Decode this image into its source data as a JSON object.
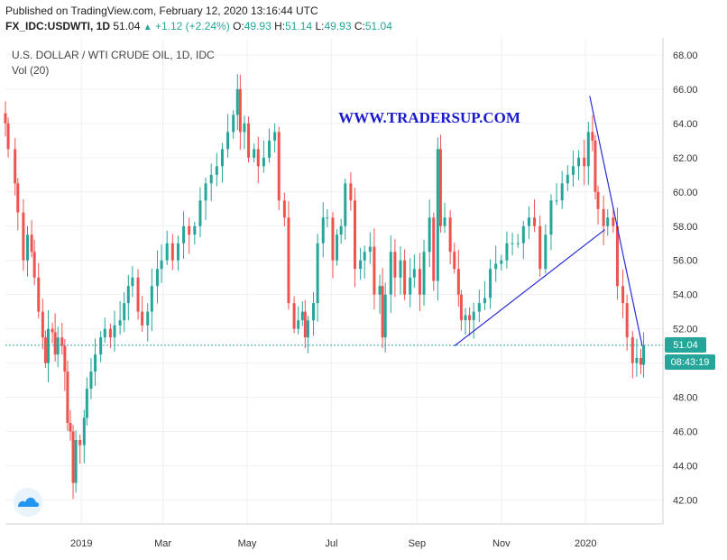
{
  "header": {
    "published": "Published on TradingView.com, February 12, 2020 13:16:44 UTC",
    "symbol": "FX_IDC:USDWTI, 1D",
    "last": "51.04",
    "change": "+1.12 (+2.24%)",
    "o_label": "O:",
    "o_val": "49.93",
    "h_label": "H:",
    "h_val": "51.14",
    "l_label": "L:",
    "l_val": "49.93",
    "c_label": "C:",
    "c_val": "51.04"
  },
  "pane": {
    "title": "U.S. DOLLAR / WTI CRUDE OIL, 1D, IDC",
    "volume": "Vol (20)",
    "watermark": "WWW.TRADERSUP.COM"
  },
  "colors": {
    "up": "#26a69a",
    "down": "#ef5350",
    "trendline": "#2b2bd6",
    "watermark": "#1a1acc",
    "price_line": "#26a69a"
  },
  "price_badge": {
    "value": "51.04",
    "countdown": "08:43:19"
  },
  "icons": {
    "tv_logo": "tradingview-cloud-icon"
  },
  "chart_data": {
    "type": "candlestick",
    "title": "U.S. DOLLAR / WTI CRUDE OIL, 1D, IDC",
    "ylim": [
      40.6,
      69.0
    ],
    "y_ticks": [
      "42.00",
      "44.00",
      "46.00",
      "48.00",
      "50.00",
      "52.00",
      "54.00",
      "56.00",
      "58.00",
      "60.00",
      "62.00",
      "64.00",
      "66.00",
      "68.00"
    ],
    "x_ticks": [
      {
        "label": "2019",
        "date": "2019-01-01"
      },
      {
        "label": "Mar",
        "date": "2019-03-01"
      },
      {
        "label": "May",
        "date": "2019-05-01"
      },
      {
        "label": "Jul",
        "date": "2019-07-01"
      },
      {
        "label": "Sep",
        "date": "2019-09-01"
      },
      {
        "label": "Nov",
        "date": "2019-11-01"
      },
      {
        "label": "2020",
        "date": "2020-01-01"
      }
    ],
    "x_range": [
      "2018-11-07",
      "2020-02-26"
    ],
    "grid": true,
    "last_price": 51.04,
    "closes": [
      {
        "date": "2018-11-07",
        "value": 64.0
      },
      {
        "date": "2018-11-09",
        "value": 62.5
      },
      {
        "date": "2018-11-14",
        "value": 60.5
      },
      {
        "date": "2018-11-16",
        "value": 58.8
      },
      {
        "date": "2018-11-20",
        "value": 56.0
      },
      {
        "date": "2018-11-23",
        "value": 57.5
      },
      {
        "date": "2018-11-26",
        "value": 56.5
      },
      {
        "date": "2018-11-28",
        "value": 55.0
      },
      {
        "date": "2018-12-01",
        "value": 53.0
      },
      {
        "date": "2018-12-04",
        "value": 51.5
      },
      {
        "date": "2018-12-06",
        "value": 50.0
      },
      {
        "date": "2018-12-08",
        "value": 52.0
      },
      {
        "date": "2018-12-11",
        "value": 51.8
      },
      {
        "date": "2018-12-13",
        "value": 50.5
      },
      {
        "date": "2018-12-15",
        "value": 51.5
      },
      {
        "date": "2018-12-18",
        "value": 51.0
      },
      {
        "date": "2018-12-20",
        "value": 49.5
      },
      {
        "date": "2018-12-22",
        "value": 46.5
      },
      {
        "date": "2018-12-24",
        "value": 46.0
      },
      {
        "date": "2018-12-26",
        "value": 43.0
      },
      {
        "date": "2018-12-28",
        "value": 45.5
      },
      {
        "date": "2018-12-31",
        "value": 45.2
      },
      {
        "date": "2019-01-03",
        "value": 46.8
      },
      {
        "date": "2019-01-05",
        "value": 48.5
      },
      {
        "date": "2019-01-08",
        "value": 49.5
      },
      {
        "date": "2019-01-11",
        "value": 50.5
      },
      {
        "date": "2019-01-15",
        "value": 51.5
      },
      {
        "date": "2019-01-18",
        "value": 52.0
      },
      {
        "date": "2019-01-22",
        "value": 51.5
      },
      {
        "date": "2019-01-25",
        "value": 52.2
      },
      {
        "date": "2019-01-29",
        "value": 52.5
      },
      {
        "date": "2019-02-01",
        "value": 53.5
      },
      {
        "date": "2019-02-04",
        "value": 54.5
      },
      {
        "date": "2019-02-07",
        "value": 55.0
      },
      {
        "date": "2019-02-11",
        "value": 53.0
      },
      {
        "date": "2019-02-14",
        "value": 52.2
      },
      {
        "date": "2019-02-18",
        "value": 53.0
      },
      {
        "date": "2019-02-21",
        "value": 54.5
      },
      {
        "date": "2019-02-25",
        "value": 55.5
      },
      {
        "date": "2019-02-28",
        "value": 56.0
      },
      {
        "date": "2019-03-04",
        "value": 57.0
      },
      {
        "date": "2019-03-08",
        "value": 56.0
      },
      {
        "date": "2019-03-12",
        "value": 57.0
      },
      {
        "date": "2019-03-16",
        "value": 58.0
      },
      {
        "date": "2019-03-20",
        "value": 57.5
      },
      {
        "date": "2019-03-24",
        "value": 58.0
      },
      {
        "date": "2019-03-28",
        "value": 59.5
      },
      {
        "date": "2019-04-01",
        "value": 60.5
      },
      {
        "date": "2019-04-05",
        "value": 61.0
      },
      {
        "date": "2019-04-09",
        "value": 61.5
      },
      {
        "date": "2019-04-13",
        "value": 62.5
      },
      {
        "date": "2019-04-17",
        "value": 63.5
      },
      {
        "date": "2019-04-21",
        "value": 64.5
      },
      {
        "date": "2019-04-24",
        "value": 66.0
      },
      {
        "date": "2019-04-26",
        "value": 63.5
      },
      {
        "date": "2019-04-29",
        "value": 64.0
      },
      {
        "date": "2019-05-02",
        "value": 62.0
      },
      {
        "date": "2019-05-06",
        "value": 62.5
      },
      {
        "date": "2019-05-09",
        "value": 61.5
      },
      {
        "date": "2019-05-13",
        "value": 62.0
      },
      {
        "date": "2019-05-17",
        "value": 63.0
      },
      {
        "date": "2019-05-21",
        "value": 63.5
      },
      {
        "date": "2019-05-24",
        "value": 59.5
      },
      {
        "date": "2019-05-28",
        "value": 58.5
      },
      {
        "date": "2019-05-31",
        "value": 53.5
      },
      {
        "date": "2019-06-04",
        "value": 52.0
      },
      {
        "date": "2019-06-07",
        "value": 52.5
      },
      {
        "date": "2019-06-10",
        "value": 53.0
      },
      {
        "date": "2019-06-12",
        "value": 51.5
      },
      {
        "date": "2019-06-14",
        "value": 52.5
      },
      {
        "date": "2019-06-18",
        "value": 53.5
      },
      {
        "date": "2019-06-21",
        "value": 57.0
      },
      {
        "date": "2019-06-25",
        "value": 58.5
      },
      {
        "date": "2019-06-28",
        "value": 58.5
      },
      {
        "date": "2019-07-02",
        "value": 56.0
      },
      {
        "date": "2019-07-05",
        "value": 57.5
      },
      {
        "date": "2019-07-08",
        "value": 58.0
      },
      {
        "date": "2019-07-11",
        "value": 60.5
      },
      {
        "date": "2019-07-15",
        "value": 59.5
      },
      {
        "date": "2019-07-18",
        "value": 55.5
      },
      {
        "date": "2019-07-22",
        "value": 56.0
      },
      {
        "date": "2019-07-25",
        "value": 56.5
      },
      {
        "date": "2019-07-29",
        "value": 56.8
      },
      {
        "date": "2019-08-01",
        "value": 54.0
      },
      {
        "date": "2019-08-05",
        "value": 54.5
      },
      {
        "date": "2019-08-07",
        "value": 51.5
      },
      {
        "date": "2019-08-09",
        "value": 54.0
      },
      {
        "date": "2019-08-13",
        "value": 56.5
      },
      {
        "date": "2019-08-16",
        "value": 55.0
      },
      {
        "date": "2019-08-20",
        "value": 56.0
      },
      {
        "date": "2019-08-23",
        "value": 54.0
      },
      {
        "date": "2019-08-27",
        "value": 55.0
      },
      {
        "date": "2019-08-30",
        "value": 55.5
      },
      {
        "date": "2019-09-03",
        "value": 54.0
      },
      {
        "date": "2019-09-06",
        "value": 56.5
      },
      {
        "date": "2019-09-10",
        "value": 58.5
      },
      {
        "date": "2019-09-13",
        "value": 54.8
      },
      {
        "date": "2019-09-16",
        "value": 62.5
      },
      {
        "date": "2019-09-18",
        "value": 58.0
      },
      {
        "date": "2019-09-21",
        "value": 58.5
      },
      {
        "date": "2019-09-25",
        "value": 56.5
      },
      {
        "date": "2019-09-28",
        "value": 55.5
      },
      {
        "date": "2019-10-01",
        "value": 54.0
      },
      {
        "date": "2019-10-03",
        "value": 52.5
      },
      {
        "date": "2019-10-06",
        "value": 52.8
      },
      {
        "date": "2019-10-09",
        "value": 52.5
      },
      {
        "date": "2019-10-12",
        "value": 53.0
      },
      {
        "date": "2019-10-16",
        "value": 53.5
      },
      {
        "date": "2019-10-20",
        "value": 53.8
      },
      {
        "date": "2019-10-24",
        "value": 55.5
      },
      {
        "date": "2019-10-28",
        "value": 55.8
      },
      {
        "date": "2019-11-01",
        "value": 56.0
      },
      {
        "date": "2019-11-05",
        "value": 57.0
      },
      {
        "date": "2019-11-09",
        "value": 57.0
      },
      {
        "date": "2019-11-13",
        "value": 57.0
      },
      {
        "date": "2019-11-17",
        "value": 58.0
      },
      {
        "date": "2019-11-21",
        "value": 58.5
      },
      {
        "date": "2019-11-25",
        "value": 58.0
      },
      {
        "date": "2019-11-29",
        "value": 55.5
      },
      {
        "date": "2019-12-03",
        "value": 57.5
      },
      {
        "date": "2019-12-07",
        "value": 59.5
      },
      {
        "date": "2019-12-11",
        "value": 59.5
      },
      {
        "date": "2019-12-15",
        "value": 60.5
      },
      {
        "date": "2019-12-19",
        "value": 61.0
      },
      {
        "date": "2019-12-23",
        "value": 61.5
      },
      {
        "date": "2019-12-27",
        "value": 62.0
      },
      {
        "date": "2019-12-31",
        "value": 61.5
      },
      {
        "date": "2020-01-03",
        "value": 63.5
      },
      {
        "date": "2020-01-06",
        "value": 63.0
      },
      {
        "date": "2020-01-08",
        "value": 60.0
      },
      {
        "date": "2020-01-10",
        "value": 59.0
      },
      {
        "date": "2020-01-14",
        "value": 58.0
      },
      {
        "date": "2020-01-17",
        "value": 58.5
      },
      {
        "date": "2020-01-21",
        "value": 58.0
      },
      {
        "date": "2020-01-24",
        "value": 54.5
      },
      {
        "date": "2020-01-28",
        "value": 53.5
      },
      {
        "date": "2020-01-31",
        "value": 51.5
      },
      {
        "date": "2020-02-04",
        "value": 50.0
      },
      {
        "date": "2020-02-07",
        "value": 50.3
      },
      {
        "date": "2020-02-10",
        "value": 49.9
      },
      {
        "date": "2020-02-12",
        "value": 51.04
      }
    ],
    "trendlines": [
      {
        "from": {
          "date": "2019-09-28",
          "value": 51.0
        },
        "to": {
          "date": "2020-01-15",
          "value": 57.8
        }
      },
      {
        "from": {
          "date": "2020-01-04",
          "value": 65.6
        },
        "to": {
          "date": "2020-02-11",
          "value": 51.0
        }
      }
    ]
  }
}
